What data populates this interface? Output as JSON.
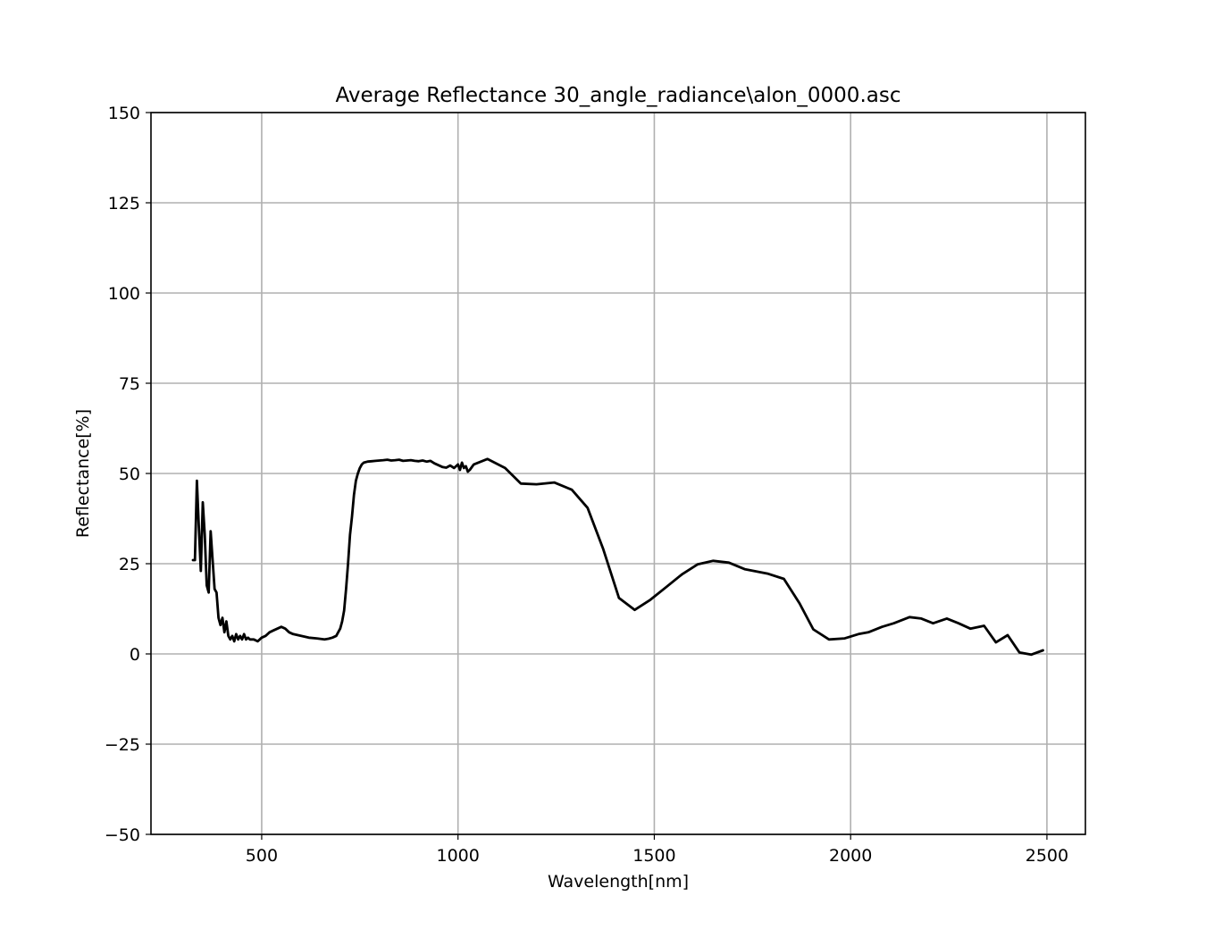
{
  "chart_data": {
    "type": "line",
    "title": "Average Reflectance 30_angle_radiance\\alon_0000.asc",
    "xlabel": "Wavelength[nm]",
    "ylabel": "Reflectance[%]",
    "xlim": [
      218,
      2598
    ],
    "ylim": [
      -50,
      150
    ],
    "x_ticks": [
      500,
      1000,
      1500,
      2000,
      2500
    ],
    "x_tick_labels": [
      "500",
      "1000",
      "1500",
      "2000",
      "2500"
    ],
    "y_ticks": [
      -50,
      -25,
      0,
      25,
      50,
      75,
      100,
      125,
      150
    ],
    "y_tick_labels": [
      "−50",
      "−25",
      "0",
      "25",
      "50",
      "75",
      "100",
      "125",
      "150"
    ],
    "grid": true,
    "series": [
      {
        "color": "#000000",
        "x": [
          325,
          330,
          335,
          340,
          345,
          350,
          355,
          360,
          365,
          370,
          375,
          380,
          385,
          390,
          395,
          400,
          405,
          410,
          415,
          420,
          425,
          430,
          435,
          440,
          445,
          450,
          455,
          460,
          465,
          470,
          480,
          490,
          500,
          510,
          520,
          530,
          540,
          550,
          560,
          570,
          580,
          600,
          620,
          640,
          660,
          670,
          680,
          690,
          700,
          705,
          710,
          715,
          720,
          725,
          730,
          735,
          740,
          745,
          750,
          755,
          760,
          770,
          780,
          790,
          800,
          810,
          820,
          830,
          840,
          850,
          860,
          870,
          880,
          890,
          900,
          910,
          920,
          930,
          940,
          950,
          960,
          970,
          980,
          990,
          1000,
          1005,
          1010,
          1015,
          1020,
          1025,
          1030,
          1040,
          1075,
          1120,
          1160,
          1200,
          1245,
          1290,
          1330,
          1370,
          1410,
          1450,
          1490,
          1530,
          1570,
          1610,
          1650,
          1690,
          1730,
          1790,
          1830,
          1870,
          1905,
          1945,
          1985,
          2020,
          2045,
          2080,
          2110,
          2150,
          2180,
          2210,
          2245,
          2275,
          2305,
          2340,
          2370,
          2400,
          2430,
          2460,
          2490
        ],
        "y": [
          26,
          26,
          48,
          35,
          23,
          42,
          33,
          19,
          17,
          34,
          26,
          18,
          17,
          10,
          8,
          10,
          6,
          9,
          5,
          4,
          5,
          3.5,
          5.5,
          4,
          5,
          4,
          5.5,
          4,
          4.5,
          4,
          4,
          3.5,
          4.5,
          5,
          6,
          6.5,
          7,
          7.5,
          7,
          6,
          5.5,
          5,
          4.5,
          4.3,
          4,
          4.2,
          4.5,
          5,
          7,
          9,
          12,
          18,
          25,
          33,
          38,
          44,
          48,
          50,
          51.5,
          52.5,
          53,
          53.3,
          53.4,
          53.5,
          53.6,
          53.7,
          53.8,
          53.6,
          53.7,
          53.8,
          53.5,
          53.6,
          53.7,
          53.5,
          53.4,
          53.6,
          53.3,
          53.5,
          52.8,
          52.3,
          51.8,
          51.6,
          52.2,
          51.5,
          52.5,
          51,
          53,
          51.5,
          52,
          50.5,
          51,
          52.5,
          54,
          51.5,
          47.2,
          47,
          47.5,
          45.5,
          40.5,
          29,
          15.5,
          12.2,
          15,
          18.5,
          22,
          24.8,
          25.8,
          25.3,
          23.5,
          22.2,
          20.8,
          14,
          6.8,
          4,
          4.3,
          5.5,
          6,
          7.5,
          8.5,
          10.2,
          9.8,
          8.5,
          9.8,
          8.5,
          7,
          7.8,
          3.2,
          5.2,
          0.4,
          -0.2,
          1
        ]
      }
    ]
  }
}
